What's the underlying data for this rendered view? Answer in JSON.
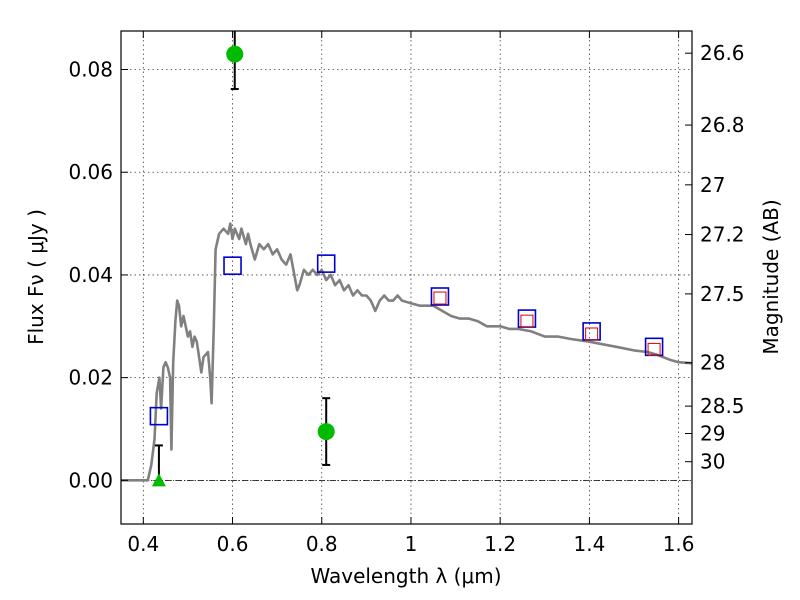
{
  "chart_data": {
    "type": "scatter",
    "xlabel": "Wavelength  λ (μm)",
    "ylabel": "Flux  Fν  ( μJy )",
    "ylabel_right": "Magnitude (AB)",
    "xlim": [
      0.35,
      1.63
    ],
    "ylim": [
      -0.0085,
      0.0875
    ],
    "x_ticks": [
      0.4,
      0.6,
      0.8,
      1.0,
      1.2,
      1.4,
      1.6
    ],
    "x_tick_labels": [
      "0.4",
      "0.6",
      "0.8",
      "1",
      "1.2",
      "1.4",
      "1.6"
    ],
    "y_ticks": [
      0.0,
      0.02,
      0.04,
      0.06,
      0.08
    ],
    "y_tick_labels": [
      "0.00",
      "0.02",
      "0.04",
      "0.06",
      "0.08"
    ],
    "right_ticks": [
      {
        "label": "26.6",
        "value": 26.6
      },
      {
        "label": "26.8",
        "value": 26.8
      },
      {
        "label": "27",
        "value": 27.0
      },
      {
        "label": "27.2",
        "value": 27.2
      },
      {
        "label": "27.5",
        "value": 27.5
      },
      {
        "label": "28",
        "value": 28.0
      },
      {
        "label": "28.5",
        "value": 28.5
      },
      {
        "label": "29",
        "value": 29.0
      },
      {
        "label": "30",
        "value": 30.0
      }
    ],
    "grid": true,
    "colors": {
      "model": "#808080",
      "observed": "#00bb00",
      "model_band": "#0000cc",
      "inner_square": "#dd0000",
      "errorbar": "#000000"
    },
    "series": [
      {
        "kind": "line",
        "points": [
          [
            0.35,
            0.0
          ],
          [
            0.41,
            0.0
          ],
          [
            0.418,
            0.003
          ],
          [
            0.425,
            0.008
          ],
          [
            0.43,
            0.017
          ],
          [
            0.436,
            0.02
          ],
          [
            0.44,
            0.014
          ],
          [
            0.445,
            0.022
          ],
          [
            0.45,
            0.023
          ],
          [
            0.455,
            0.022
          ],
          [
            0.46,
            0.02
          ],
          [
            0.463,
            0.006
          ],
          [
            0.467,
            0.023
          ],
          [
            0.472,
            0.031
          ],
          [
            0.476,
            0.035
          ],
          [
            0.48,
            0.034
          ],
          [
            0.485,
            0.03
          ],
          [
            0.49,
            0.032
          ],
          [
            0.495,
            0.03
          ],
          [
            0.5,
            0.028
          ],
          [
            0.505,
            0.029
          ],
          [
            0.51,
            0.026
          ],
          [
            0.515,
            0.028
          ],
          [
            0.52,
            0.027
          ],
          [
            0.525,
            0.024
          ],
          [
            0.53,
            0.021
          ],
          [
            0.535,
            0.024
          ],
          [
            0.545,
            0.025
          ],
          [
            0.55,
            0.02
          ],
          [
            0.553,
            0.015
          ],
          [
            0.558,
            0.03
          ],
          [
            0.562,
            0.045
          ],
          [
            0.57,
            0.048
          ],
          [
            0.58,
            0.049
          ],
          [
            0.59,
            0.048
          ],
          [
            0.595,
            0.05
          ],
          [
            0.6,
            0.047
          ],
          [
            0.605,
            0.049
          ],
          [
            0.61,
            0.048
          ],
          [
            0.615,
            0.047
          ],
          [
            0.62,
            0.049
          ],
          [
            0.63,
            0.046
          ],
          [
            0.635,
            0.048
          ],
          [
            0.64,
            0.046
          ],
          [
            0.65,
            0.043
          ],
          [
            0.66,
            0.046
          ],
          [
            0.67,
            0.045
          ],
          [
            0.68,
            0.046
          ],
          [
            0.69,
            0.044
          ],
          [
            0.7,
            0.045
          ],
          [
            0.71,
            0.043
          ],
          [
            0.72,
            0.042
          ],
          [
            0.73,
            0.044
          ],
          [
            0.745,
            0.037
          ],
          [
            0.75,
            0.038
          ],
          [
            0.76,
            0.041
          ],
          [
            0.77,
            0.04
          ],
          [
            0.78,
            0.041
          ],
          [
            0.79,
            0.04
          ],
          [
            0.8,
            0.041
          ],
          [
            0.81,
            0.039
          ],
          [
            0.82,
            0.04
          ],
          [
            0.83,
            0.038
          ],
          [
            0.84,
            0.039
          ],
          [
            0.85,
            0.037
          ],
          [
            0.86,
            0.038
          ],
          [
            0.87,
            0.036
          ],
          [
            0.88,
            0.037
          ],
          [
            0.89,
            0.036
          ],
          [
            0.9,
            0.036
          ],
          [
            0.91,
            0.035
          ],
          [
            0.92,
            0.033
          ],
          [
            0.93,
            0.035
          ],
          [
            0.94,
            0.036
          ],
          [
            0.95,
            0.035
          ],
          [
            0.96,
            0.035
          ],
          [
            0.97,
            0.036
          ],
          [
            0.98,
            0.035
          ],
          [
            1.0,
            0.0345
          ],
          [
            1.02,
            0.034
          ],
          [
            1.05,
            0.034
          ],
          [
            1.07,
            0.033
          ],
          [
            1.09,
            0.032
          ],
          [
            1.11,
            0.0315
          ],
          [
            1.13,
            0.0315
          ],
          [
            1.15,
            0.031
          ],
          [
            1.17,
            0.03
          ],
          [
            1.2,
            0.03
          ],
          [
            1.22,
            0.0295
          ],
          [
            1.24,
            0.0295
          ],
          [
            1.27,
            0.029
          ],
          [
            1.3,
            0.028
          ],
          [
            1.33,
            0.028
          ],
          [
            1.36,
            0.0275
          ],
          [
            1.4,
            0.027
          ],
          [
            1.43,
            0.0265
          ],
          [
            1.46,
            0.026
          ],
          [
            1.5,
            0.0253
          ],
          [
            1.53,
            0.025
          ],
          [
            1.55,
            0.0245
          ],
          [
            1.58,
            0.0235
          ],
          [
            1.6,
            0.023
          ],
          [
            1.63,
            0.0228
          ]
        ]
      },
      {
        "kind": "observed",
        "points": [
          {
            "x": 0.605,
            "y": 0.083,
            "err": 0.0068
          },
          {
            "x": 0.81,
            "y": 0.0095,
            "err": 0.0065
          }
        ]
      },
      {
        "kind": "upper_limit",
        "points": [
          {
            "x": 0.435,
            "y": 0.0,
            "err": 0.0068
          }
        ]
      },
      {
        "kind": "model_band",
        "points": [
          {
            "x": 0.435,
            "y": 0.0125
          },
          {
            "x": 0.6,
            "y": 0.0418
          },
          {
            "x": 0.81,
            "y": 0.0422
          },
          {
            "x": 1.065,
            "y": 0.0358
          },
          {
            "x": 1.26,
            "y": 0.0315
          },
          {
            "x": 1.405,
            "y": 0.029
          },
          {
            "x": 1.545,
            "y": 0.026
          }
        ]
      },
      {
        "kind": "inner_square",
        "points": [
          {
            "x": 1.065,
            "y": 0.0355
          },
          {
            "x": 1.26,
            "y": 0.031
          },
          {
            "x": 1.405,
            "y": 0.0285
          },
          {
            "x": 1.545,
            "y": 0.0255
          }
        ]
      }
    ]
  }
}
